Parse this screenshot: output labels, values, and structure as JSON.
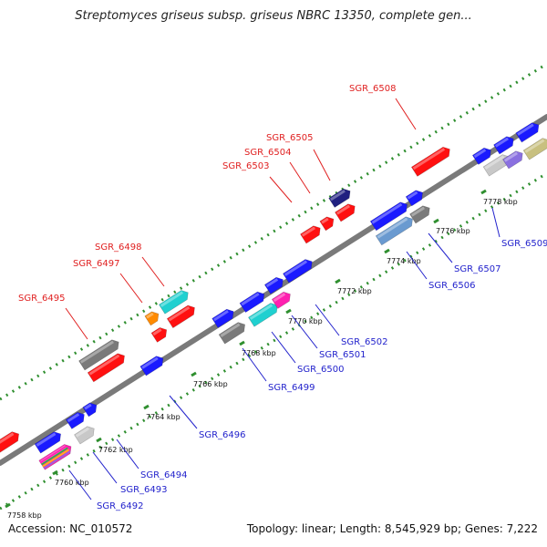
{
  "title": "Streptomyces griseus subsp. griseus NBRC 13350, complete gen...",
  "accession": "Accession: NC_010572",
  "topology": "Topology: linear; Length: 8,545,929 bp; Genes: 7,222",
  "colors": {
    "backbone": "#8c8c8c",
    "dotted_track": "#2f8f2f",
    "upper_label": "#e02020",
    "lower_label": "#2222cc",
    "kbp_label": "#111111"
  },
  "scale_labels": [
    "7758 kbp",
    "7760 kbp",
    "7762 kbp",
    "7764 kbp",
    "7766 kbp",
    "7768 kbp",
    "7770 kbp",
    "7772 kbp",
    "7774 kbp",
    "7776 kbp",
    "7778 kbp"
  ],
  "upper_gene_labels": [
    "SGR_6495",
    "SGR_6497",
    "SGR_6498",
    "SGR_6503",
    "SGR_6504",
    "SGR_6505",
    "SGR_6508"
  ],
  "lower_gene_labels": [
    "SGR_6492",
    "SGR_6493",
    "SGR_6494",
    "SGR_6496",
    "SGR_6499",
    "SGR_6500",
    "SGR_6501",
    "SGR_6502",
    "SGR_6506",
    "SGR_6507",
    "SGR_6509"
  ],
  "gene_colors": {
    "red": "#ff1010",
    "blue": "#1a1aff",
    "gray": "#7a7a7a",
    "light_gray": "#c8c8c8",
    "cyan": "#20d0d0",
    "magenta": "#ff20b0",
    "orange": "#ff8a00",
    "navy": "#202080",
    "steel_blue": "#6a9ad0",
    "lavender": "#8a70e0",
    "olive": "#c8c080"
  }
}
